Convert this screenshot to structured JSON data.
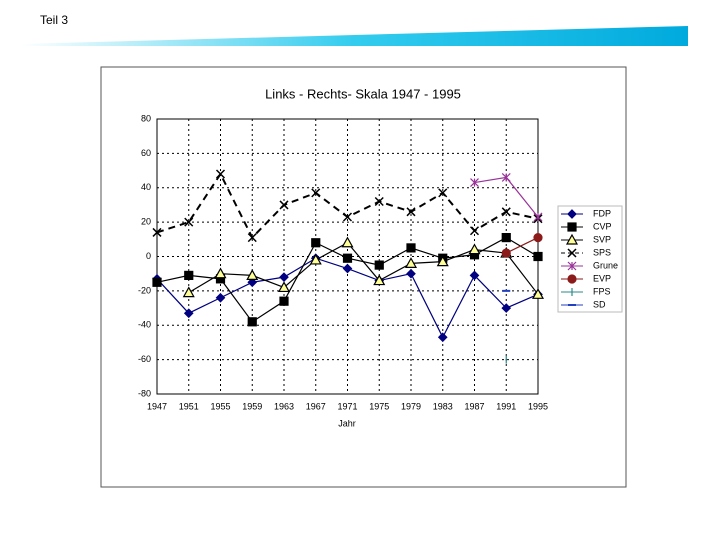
{
  "header": "Teil 3",
  "chart_data": {
    "type": "line",
    "title": "Links - Rechts- Skala 1947 - 1995",
    "x_label": "Jahr",
    "categories": [
      "1947",
      "1951",
      "1955",
      "1959",
      "1963",
      "1967",
      "1971",
      "1975",
      "1979",
      "1983",
      "1987",
      "1991",
      "1995"
    ],
    "ylim": [
      -80,
      80
    ],
    "yticks": [
      -80,
      -60,
      -40,
      -20,
      0,
      20,
      40,
      60,
      80
    ],
    "grid": true,
    "series": [
      {
        "name": "FDP",
        "color": "#000080",
        "marker": "diamond",
        "values": [
          -13,
          -33,
          -24,
          -15,
          -12,
          -1,
          -7,
          -14,
          -10,
          -47,
          -11,
          -30,
          -22
        ]
      },
      {
        "name": "CVP",
        "color": "#000000",
        "marker": "square",
        "values": [
          -15,
          -11,
          -13,
          -38,
          -26,
          8,
          -1,
          -5,
          5,
          -1,
          1,
          11,
          0
        ]
      },
      {
        "name": "SVP",
        "color": "#000000",
        "marker": "triangle",
        "values": [
          null,
          -21,
          -10,
          -11,
          -18,
          -2,
          8,
          -14,
          -4,
          -3,
          4,
          2,
          -22
        ]
      },
      {
        "name": "SPS",
        "color": "#000000",
        "marker": "x",
        "dashed": true,
        "values": [
          14,
          20,
          48,
          11,
          30,
          37,
          23,
          32,
          26,
          37,
          15,
          26,
          22
        ]
      },
      {
        "name": "Grune",
        "color": "#993399",
        "marker": "asterisk",
        "values": [
          null,
          null,
          null,
          null,
          null,
          null,
          null,
          null,
          null,
          null,
          43,
          46,
          23
        ]
      },
      {
        "name": "EVP",
        "color": "#8b1a1a",
        "marker": "circle",
        "values": [
          null,
          null,
          null,
          null,
          null,
          null,
          null,
          null,
          null,
          null,
          null,
          2,
          11
        ]
      },
      {
        "name": "FPS",
        "color": "#2a8a8a",
        "marker": "bar",
        "values": [
          null,
          null,
          null,
          null,
          null,
          null,
          null,
          null,
          null,
          null,
          null,
          -60,
          null
        ]
      },
      {
        "name": "SD",
        "color": "#2040c0",
        "marker": "dash",
        "values": [
          null,
          null,
          null,
          null,
          null,
          null,
          null,
          null,
          null,
          null,
          null,
          -20,
          null
        ]
      }
    ]
  }
}
